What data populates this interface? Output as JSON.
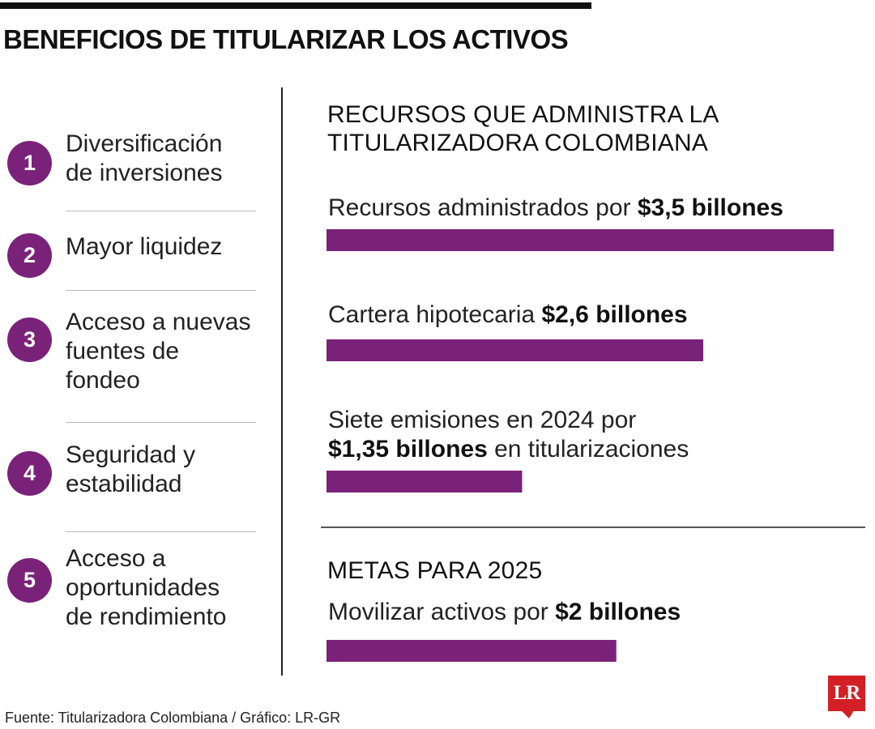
{
  "title": "BENEFICIOS DE TITULARIZAR LOS ACTIVOS",
  "benefits": [
    {
      "number": "1",
      "line1": "Diversificación",
      "line2": "de inversiones",
      "line3": ""
    },
    {
      "number": "2",
      "line1": "Mayor liquidez",
      "line2": "",
      "line3": ""
    },
    {
      "number": "3",
      "line1": "Acceso a nuevas",
      "line2": "fuentes de",
      "line3": "fondeo"
    },
    {
      "number": "4",
      "line1": "Seguridad y",
      "line2": "estabilidad",
      "line3": ""
    },
    {
      "number": "5",
      "line1": "Acceso a",
      "line2": "oportunidades",
      "line3": "de rendimiento"
    }
  ],
  "section1": {
    "title_line1": "RECURSOS QUE ADMINISTRA LA",
    "title_line2": "TITULARIZADORA COLOMBIANA"
  },
  "section2": {
    "title": "METAS PARA 2025"
  },
  "source": "Fuente: Titularizadora Colombiana / Gráfico: LR-GR",
  "logo": "LR",
  "colors": {
    "accent": "#7a2279",
    "text": "#111111",
    "logo": "#d32027"
  },
  "chart_data": {
    "type": "bar",
    "orientation": "horizontal",
    "unit": "billones",
    "bars": [
      {
        "prefix": "Recursos administrados por ",
        "value_label": "$3,5 billones",
        "suffix": "",
        "value": 3.5
      },
      {
        "prefix": "Cartera hipotecaria ",
        "value_label": "$2,6 billones",
        "suffix": "",
        "value": 2.6
      },
      {
        "prefix": "Siete emisiones en 2024 por",
        "value_label": "$1,35 billones",
        "suffix": " en titularizaciones",
        "value": 1.35
      },
      {
        "prefix": "Movilizar activos por ",
        "value_label": "$2 billones",
        "suffix": "",
        "value": 2
      }
    ],
    "xlim": [
      0,
      3.5
    ]
  }
}
